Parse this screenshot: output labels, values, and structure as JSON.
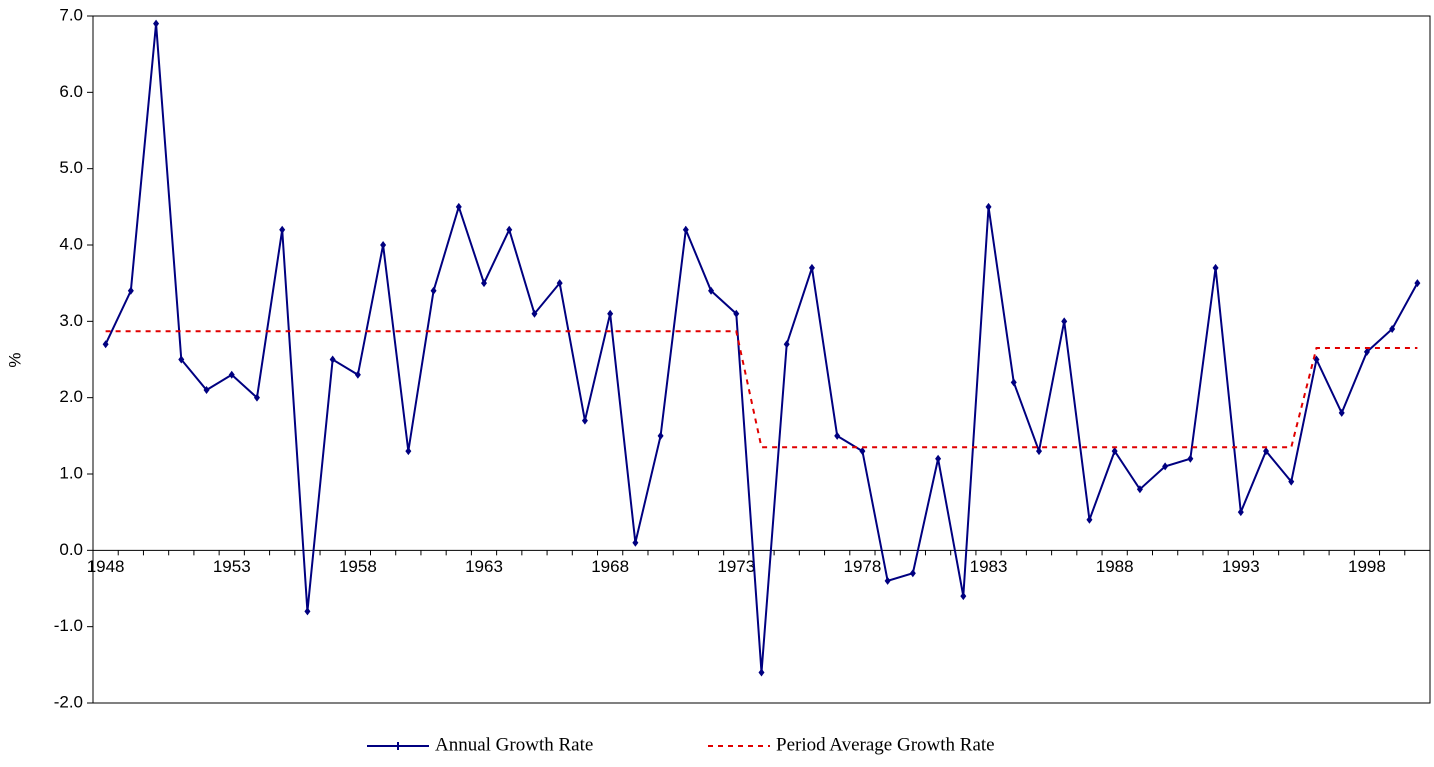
{
  "chart_data": {
    "type": "line",
    "y_label": "%",
    "categories": [
      "1948",
      null,
      null,
      null,
      null,
      "1953",
      null,
      null,
      null,
      null,
      "1958",
      null,
      null,
      null,
      null,
      "1963",
      null,
      null,
      null,
      null,
      "1968",
      null,
      null,
      null,
      null,
      "1973",
      null,
      null,
      null,
      null,
      "1978",
      null,
      null,
      null,
      null,
      "1983",
      null,
      null,
      null,
      null,
      "1988",
      null,
      null,
      null,
      null,
      "1993",
      null,
      null,
      null,
      null,
      "1998",
      null,
      null
    ],
    "series": [
      {
        "name": "Annual Growth Rate",
        "color": "#000080",
        "style": "solid",
        "marker": true,
        "values": [
          2.7,
          3.4,
          6.9,
          2.5,
          2.1,
          2.3,
          2.0,
          4.2,
          -0.8,
          2.5,
          2.3,
          4.0,
          1.3,
          3.4,
          4.5,
          3.5,
          4.2,
          3.1,
          3.5,
          1.7,
          3.1,
          0.1,
          1.5,
          4.2,
          3.4,
          3.1,
          -1.6,
          2.7,
          3.7,
          1.5,
          1.3,
          -0.4,
          -0.3,
          1.2,
          -0.6,
          4.5,
          2.2,
          1.3,
          3.0,
          0.4,
          1.3,
          0.8,
          1.1,
          1.2,
          3.7,
          0.5,
          1.3,
          0.9,
          2.5,
          1.8,
          2.6,
          2.9,
          3.5
        ]
      },
      {
        "name": "Period Average Growth Rate",
        "color": "#e00000",
        "style": "dashed",
        "marker": false,
        "values": [
          2.87,
          2.87,
          2.87,
          2.87,
          2.87,
          2.87,
          2.87,
          2.87,
          2.87,
          2.87,
          2.87,
          2.87,
          2.87,
          2.87,
          2.87,
          2.87,
          2.87,
          2.87,
          2.87,
          2.87,
          2.87,
          2.87,
          2.87,
          2.87,
          2.87,
          2.87,
          1.35,
          1.35,
          1.35,
          1.35,
          1.35,
          1.35,
          1.35,
          1.35,
          1.35,
          1.35,
          1.35,
          1.35,
          1.35,
          1.35,
          1.35,
          1.35,
          1.35,
          1.35,
          1.35,
          1.35,
          1.35,
          1.35,
          2.65,
          2.65,
          2.65,
          2.65,
          2.65
        ]
      }
    ],
    "ylim": [
      -2,
      7
    ],
    "yticks": [
      {
        "value": -2,
        "label": "-2.0"
      },
      {
        "value": -1,
        "label": "-1.0"
      },
      {
        "value": 0,
        "label": "0.0"
      },
      {
        "value": 1,
        "label": "1.0"
      },
      {
        "value": 2,
        "label": "2.0"
      },
      {
        "value": 3,
        "label": "3.0"
      },
      {
        "value": 4,
        "label": "4.0"
      },
      {
        "value": 5,
        "label": "5.0"
      },
      {
        "value": 6,
        "label": "6.0"
      },
      {
        "value": 7,
        "label": "7.0"
      }
    ],
    "legend": "bottom"
  }
}
